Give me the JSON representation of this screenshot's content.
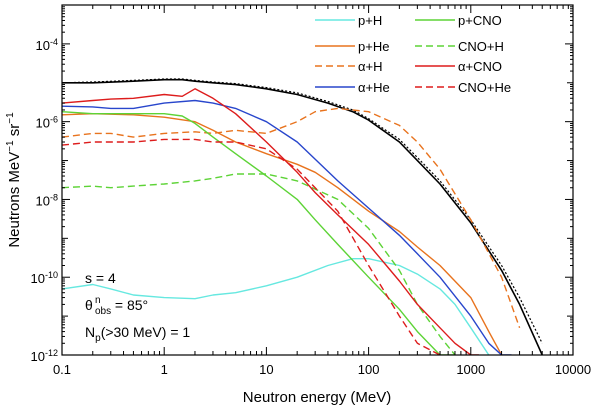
{
  "chart_data": {
    "type": "line",
    "title": "",
    "xlabel": "Neutron energy (MeV)",
    "ylabel_parts": [
      "Neutrons MeV",
      "−1",
      " sr",
      "−1"
    ],
    "xscale": "log",
    "yscale": "log",
    "xlim": [
      0.1,
      10000
    ],
    "ylim": [
      1e-12,
      0.001
    ],
    "xticks": [
      0.1,
      1,
      10,
      100,
      1000,
      10000
    ],
    "xtick_labels": [
      "0.1",
      "1",
      "10",
      "100",
      "1000",
      "10000"
    ],
    "yticks": [
      1e-12,
      1e-10,
      1e-08,
      1e-06,
      0.0001
    ],
    "ytick_labels": [
      {
        "base": "10",
        "exp": "-12"
      },
      {
        "base": "10",
        "exp": "-10"
      },
      {
        "base": "10",
        "exp": "-8"
      },
      {
        "base": "10",
        "exp": "-6"
      },
      {
        "base": "10",
        "exp": "-4"
      }
    ],
    "legend_position": "top-right",
    "annotations": {
      "s_label": "s = 4",
      "theta_main": "θ",
      "theta_sup": "n",
      "theta_sub": "obs",
      "theta_value": " = 85°",
      "np_main": "N",
      "np_sub": "p",
      "np_rest": "(>30 MeV) = 1"
    },
    "series": [
      {
        "name": "total",
        "legend": false,
        "color": "#000000",
        "dash": "solid",
        "width": 1.6,
        "x": [
          0.1,
          0.2,
          0.5,
          1,
          1.5,
          2,
          3,
          5,
          10,
          20,
          40,
          70,
          100,
          200,
          300,
          500,
          1000,
          2000,
          3000,
          5000
        ],
        "y": [
          1e-05,
          1e-05,
          1.1e-05,
          1.2e-05,
          1.2e-05,
          1.1e-05,
          1e-05,
          9e-06,
          7e-06,
          5e-06,
          3e-06,
          1.8e-06,
          1.1e-06,
          3e-07,
          1e-07,
          2.5e-08,
          2.5e-09,
          1.5e-10,
          2e-11,
          1e-12
        ]
      },
      {
        "name": "total (dotted)",
        "legend": false,
        "color": "#000000",
        "dash": "dotted",
        "width": 1.2,
        "x": [
          0.1,
          0.2,
          0.5,
          1,
          1.5,
          2,
          3,
          5,
          10,
          20,
          40,
          70,
          100,
          200,
          300,
          500,
          1000,
          2000,
          3000,
          5000
        ],
        "y": [
          1e-05,
          1.05e-05,
          1.15e-05,
          1.25e-05,
          1.25e-05,
          1.15e-05,
          1.05e-05,
          9.5e-06,
          7.5e-06,
          5.5e-06,
          3.3e-06,
          2e-06,
          1.2e-06,
          3.5e-07,
          1.2e-07,
          3e-08,
          3e-09,
          2e-10,
          3e-11,
          2e-12
        ]
      },
      {
        "name": "p+H",
        "legend": true,
        "color": "#66e8e0",
        "dash": "solid",
        "width": 1.4,
        "x": [
          0.1,
          0.2,
          0.3,
          0.5,
          1,
          2,
          3,
          5,
          10,
          20,
          40,
          70,
          100,
          200,
          300,
          500,
          700,
          1000,
          1500
        ],
        "y": [
          5e-11,
          6.5e-11,
          5e-11,
          3.5e-11,
          3e-11,
          2.8e-11,
          3.5e-11,
          4e-11,
          6e-11,
          1e-10,
          2e-10,
          3e-10,
          3e-10,
          2e-10,
          1.2e-10,
          5e-11,
          2e-11,
          5e-12,
          1e-12
        ]
      },
      {
        "name": "p+He",
        "legend": true,
        "color": "#e8731e",
        "dash": "solid",
        "width": 1.4,
        "x": [
          0.1,
          0.2,
          0.5,
          1,
          2,
          3,
          5,
          10,
          20,
          30,
          50,
          100,
          200,
          300,
          500,
          1000,
          1500,
          2000
        ],
        "y": [
          1.5e-06,
          1.6e-06,
          1.5e-06,
          1.3e-06,
          1e-06,
          6e-07,
          3e-07,
          1.5e-07,
          8e-08,
          5e-08,
          2e-08,
          5e-09,
          1.5e-09,
          6e-10,
          2e-10,
          3e-11,
          4e-12,
          1e-12
        ]
      },
      {
        "name": "α+H",
        "legend": true,
        "color": "#e8731e",
        "dash": "dashed",
        "width": 1.4,
        "x": [
          0.1,
          0.2,
          0.3,
          0.5,
          1,
          2,
          3,
          5,
          10,
          20,
          30,
          50,
          100,
          200,
          300,
          500,
          1000,
          2000,
          3000
        ],
        "y": [
          4e-07,
          5e-07,
          5e-07,
          4e-07,
          5e-07,
          5.5e-07,
          5e-07,
          6e-07,
          5e-07,
          1e-06,
          1.8e-06,
          2.2e-06,
          1.8e-06,
          8e-07,
          3e-07,
          6e-08,
          3e-09,
          1e-10,
          5e-12
        ]
      },
      {
        "name": "α+He",
        "legend": true,
        "color": "#2846cc",
        "dash": "solid",
        "width": 1.4,
        "x": [
          0.1,
          0.2,
          0.3,
          0.5,
          1,
          2,
          3,
          5,
          10,
          20,
          50,
          100,
          200,
          300,
          500,
          1000,
          1500,
          2000,
          2500
        ],
        "y": [
          2.5e-06,
          2.4e-06,
          2.2e-06,
          2.2e-06,
          3e-06,
          3.5e-06,
          3e-06,
          2.2e-06,
          1e-06,
          3e-07,
          3e-08,
          6e-09,
          1.2e-09,
          4e-10,
          1e-10,
          1e-11,
          2e-12,
          1e-12,
          1e-12
        ]
      },
      {
        "name": "p+CNO",
        "legend": true,
        "color": "#5dd336",
        "dash": "solid",
        "width": 1.4,
        "x": [
          0.1,
          0.2,
          0.3,
          0.5,
          1,
          1.5,
          2,
          3,
          5,
          10,
          20,
          30,
          50,
          100,
          200,
          300,
          500,
          700
        ],
        "y": [
          1.8e-06,
          1.6e-06,
          1.6e-06,
          1.6e-06,
          1.6e-06,
          1.4e-06,
          9e-07,
          4e-07,
          1.5e-07,
          4e-08,
          1e-08,
          3e-09,
          7e-10,
          1e-10,
          1.5e-11,
          4e-12,
          1e-12,
          1e-12
        ]
      },
      {
        "name": "CNO+H",
        "legend": true,
        "color": "#5dd336",
        "dash": "dashed",
        "width": 1.4,
        "x": [
          0.1,
          0.2,
          0.3,
          0.5,
          1,
          2,
          3,
          5,
          10,
          20,
          50,
          100,
          200,
          300,
          500,
          700
        ],
        "y": [
          2e-08,
          2.2e-08,
          2e-08,
          2.2e-08,
          2.5e-08,
          3e-08,
          3.5e-08,
          4.5e-08,
          4.5e-08,
          3e-08,
          1e-08,
          1.8e-09,
          1.5e-10,
          2e-11,
          3e-12,
          1e-12
        ]
      },
      {
        "name": "α+CNO",
        "legend": true,
        "color": "#dd1c1c",
        "dash": "solid",
        "width": 1.4,
        "x": [
          0.1,
          0.2,
          0.3,
          0.5,
          1,
          1.5,
          2,
          3,
          5,
          10,
          20,
          30,
          50,
          100,
          200,
          300,
          500,
          700,
          1000,
          1200
        ],
        "y": [
          3e-06,
          3.5e-06,
          3.8e-06,
          4e-06,
          5e-06,
          4.5e-06,
          7e-06,
          4e-06,
          1.6e-06,
          3e-07,
          5e-08,
          1.5e-08,
          4e-09,
          7e-10,
          8e-11,
          2e-11,
          5e-12,
          2e-12,
          1e-12,
          1e-12
        ]
      },
      {
        "name": "CNO+He",
        "legend": true,
        "color": "#dd1c1c",
        "dash": "dashed",
        "width": 1.4,
        "x": [
          0.1,
          0.2,
          0.3,
          0.5,
          1,
          2,
          3,
          5,
          10,
          20,
          50,
          100,
          200,
          300,
          500
        ],
        "y": [
          2.5e-07,
          3e-07,
          3e-07,
          3e-07,
          3.5e-07,
          3.5e-07,
          3e-07,
          3e-07,
          2e-07,
          6e-08,
          5e-09,
          2e-10,
          1e-11,
          2e-12,
          1e-12
        ]
      }
    ]
  }
}
